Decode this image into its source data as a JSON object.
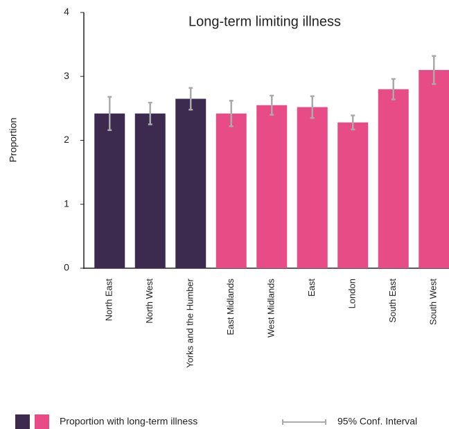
{
  "chart_data": {
    "type": "bar",
    "title": "Long-term limiting illness",
    "y_label": "Proportion",
    "categories": [
      "North East",
      "North West",
      "Yorks and the Humber",
      "East Midlands",
      "West Midlands",
      "East",
      "London",
      "South East",
      "South West"
    ],
    "series": [
      {
        "name": "Proportion with long-term illness",
        "colors": [
          "#3d2b4f",
          "#3d2b4f",
          "#3d2b4f",
          "#e84c86",
          "#e84c86",
          "#e84c86",
          "#e84c86",
          "#e84c86",
          "#e84c86"
        ],
        "values": [
          2.42,
          2.42,
          2.65,
          2.42,
          2.55,
          2.52,
          2.28,
          2.8,
          3.1
        ],
        "errors": [
          0.26,
          0.17,
          0.17,
          0.2,
          0.15,
          0.17,
          0.11,
          0.16,
          0.22
        ]
      }
    ],
    "error_label": "95% Conf. Interval",
    "error_color": "#aaaaaa",
    "legend_colors": [
      "#3d2b4f",
      "#e84c86"
    ],
    "ylim": [
      0,
      4
    ],
    "yticks": [
      0,
      1,
      2,
      3,
      4
    ]
  }
}
